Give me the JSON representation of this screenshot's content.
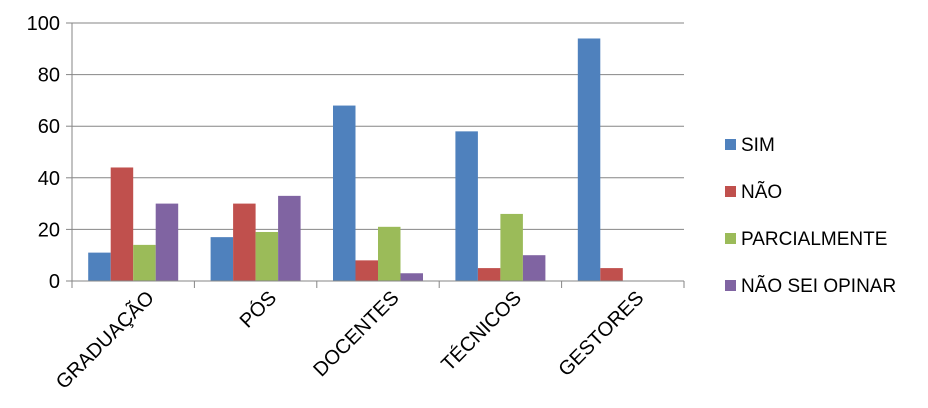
{
  "chart_data": {
    "type": "bar",
    "categories": [
      "GRADUAÇÃO",
      "PÓS",
      "DOCENTES",
      "TÉCNICOS",
      "GESTORES"
    ],
    "series": [
      {
        "name": "SIM",
        "color": "#4F81BD",
        "values": [
          11,
          17,
          68,
          58,
          94
        ]
      },
      {
        "name": "NÃO",
        "color": "#C0504D",
        "values": [
          44,
          30,
          8,
          5,
          5
        ]
      },
      {
        "name": "PARCIALMENTE",
        "color": "#9BBB59",
        "values": [
          14,
          19,
          21,
          26,
          0
        ]
      },
      {
        "name": "NÃO SEI OPINAR",
        "color": "#8064A2",
        "values": [
          30,
          33,
          3,
          10,
          0
        ]
      }
    ],
    "yticks": [
      "0",
      "20",
      "40",
      "60",
      "80",
      "100"
    ],
    "ylim": [
      0,
      100
    ],
    "grid": true,
    "legend_position": "right"
  }
}
